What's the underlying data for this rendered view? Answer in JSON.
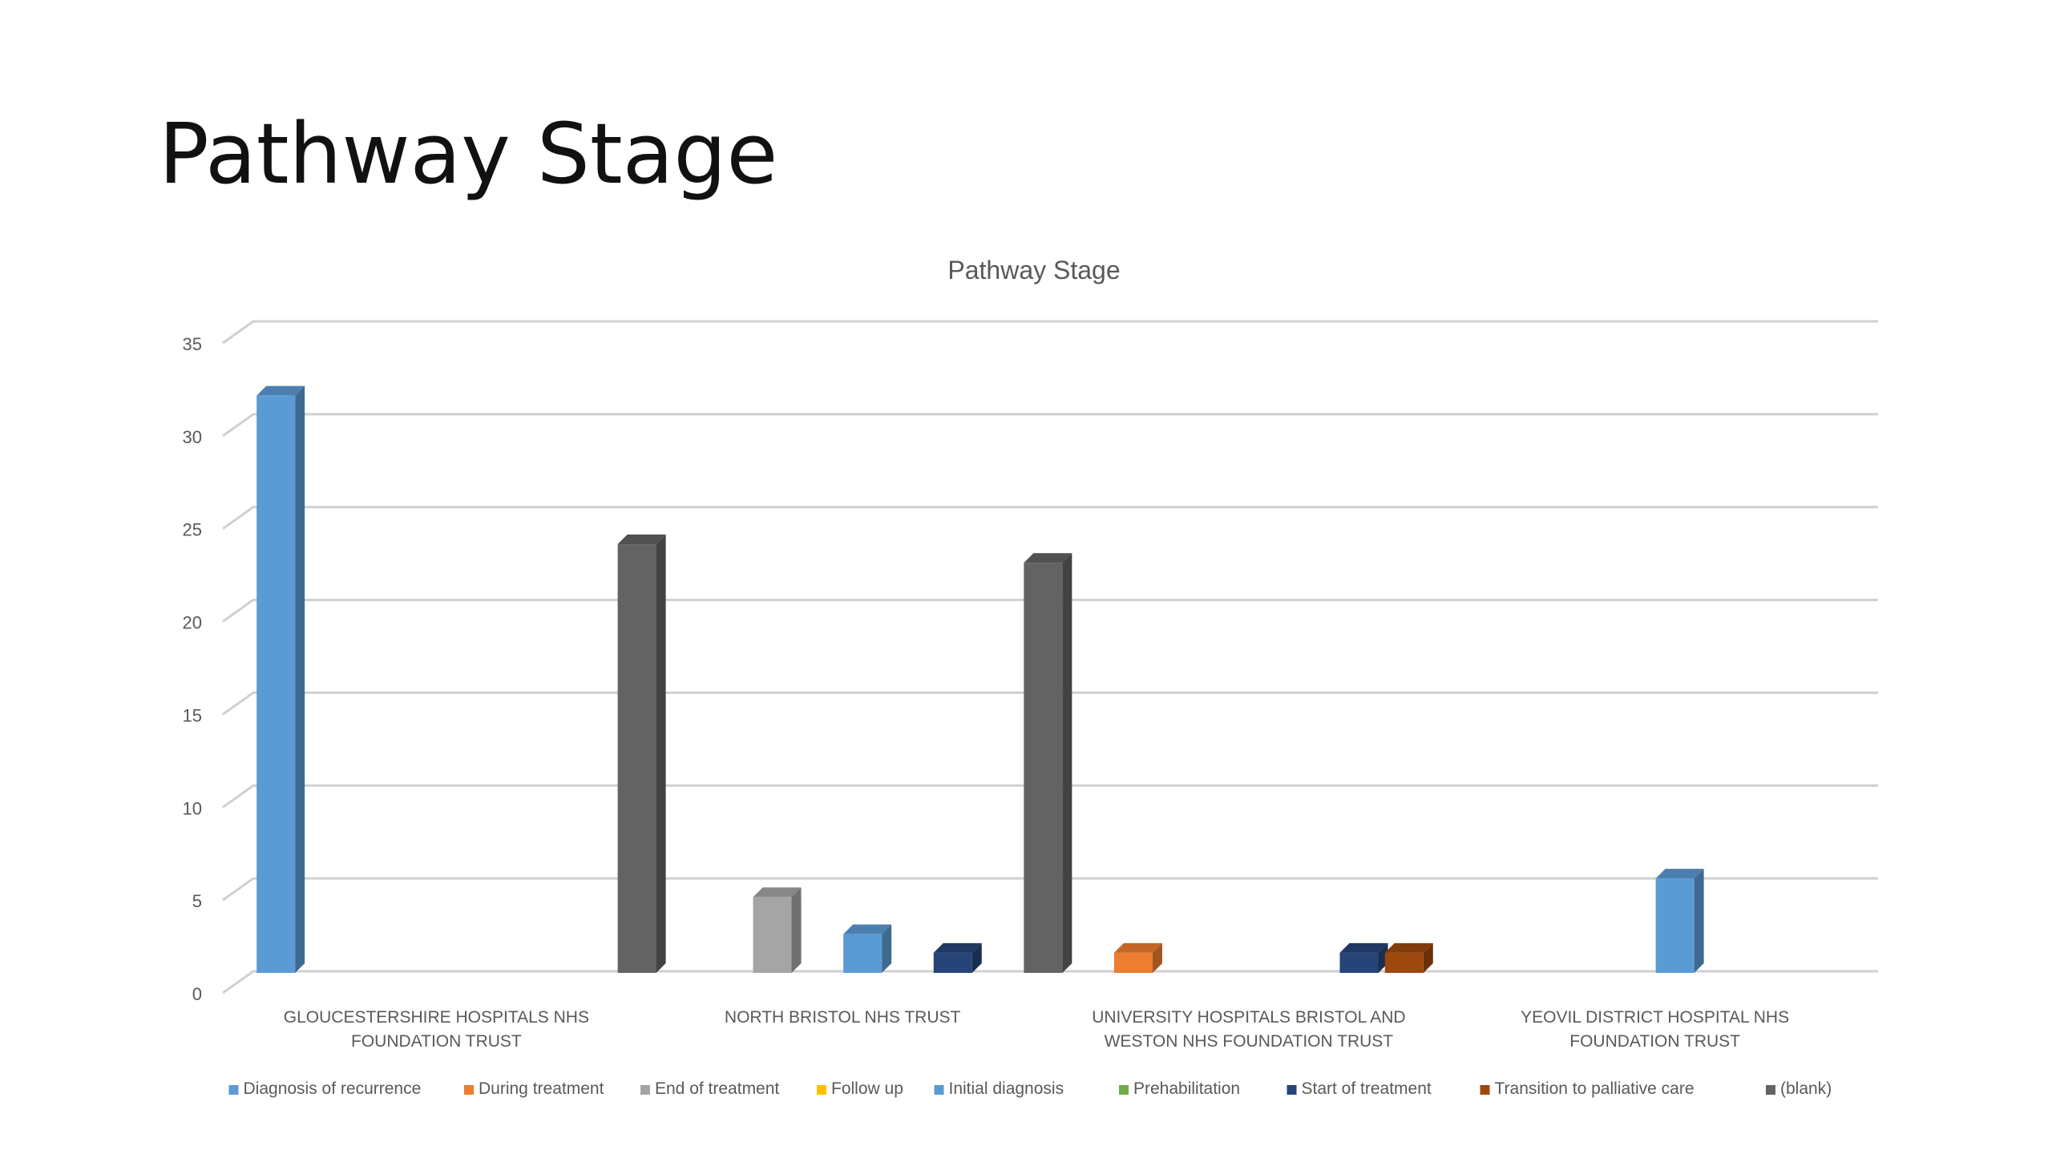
{
  "slide": {
    "title": "Pathway Stage"
  },
  "chart_data": {
    "type": "bar",
    "title": "Pathway Stage",
    "xlabel": "",
    "ylabel": "",
    "ylim": [
      0,
      35
    ],
    "yticks": [
      "0",
      "5",
      "10",
      "15",
      "20",
      "25",
      "30",
      "35"
    ],
    "grid": true,
    "three_d": true,
    "legend_position": "bottom",
    "categories": [
      [
        "GLOUCESTERSHIRE HOSPITALS NHS",
        "FOUNDATION TRUST"
      ],
      [
        "NORTH BRISTOL NHS TRUST"
      ],
      [
        "UNIVERSITY HOSPITALS BRISTOL AND",
        "WESTON NHS FOUNDATION TRUST"
      ],
      [
        "YEOVIL DISTRICT HOSPITAL NHS",
        "FOUNDATION TRUST"
      ]
    ],
    "series": [
      {
        "name": "Diagnosis of recurrence",
        "color": "#5B9BD5",
        "values": [
          31,
          0,
          0,
          0
        ]
      },
      {
        "name": "During treatment",
        "color": "#ED7D31",
        "values": [
          0,
          0,
          1,
          0
        ]
      },
      {
        "name": "End of treatment",
        "color": "#A5A5A5",
        "values": [
          0,
          4,
          0,
          0
        ]
      },
      {
        "name": "Follow up",
        "color": "#FFC000",
        "values": [
          0,
          0,
          0,
          0
        ]
      },
      {
        "name": "Initial diagnosis",
        "color": "#5B9BD5",
        "values": [
          0,
          2,
          0,
          5
        ]
      },
      {
        "name": "Prehabilitation",
        "color": "#70AD47",
        "values": [
          0,
          0,
          0,
          0
        ]
      },
      {
        "name": "Start of treatment",
        "color": "#264478",
        "values": [
          0,
          1,
          1,
          0
        ]
      },
      {
        "name": "Transition to palliative care",
        "color": "#9E480E",
        "values": [
          0,
          0,
          1,
          0
        ]
      },
      {
        "name": "(blank)",
        "color": "#636363",
        "values": [
          23,
          22,
          0,
          0
        ]
      }
    ]
  }
}
